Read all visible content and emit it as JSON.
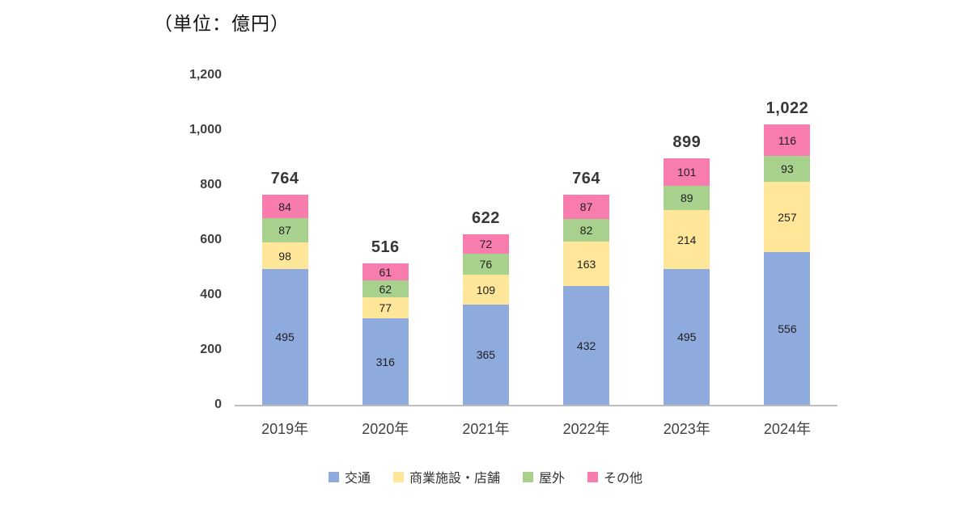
{
  "unit_label": "（単位：億円）",
  "chart_data": {
    "type": "bar",
    "stacked": true,
    "unit": "（単位：億円）",
    "categories": [
      "2019年",
      "2020年",
      "2021年",
      "2022年",
      "2023年",
      "2024年"
    ],
    "series": [
      {
        "name": "交通",
        "color": "#8FAADC",
        "values": [
          495,
          316,
          365,
          432,
          495,
          556
        ]
      },
      {
        "name": "商業施設・店舗",
        "color": "#FFE699",
        "values": [
          98,
          77,
          109,
          163,
          214,
          257
        ]
      },
      {
        "name": "屋外",
        "color": "#A9D18E",
        "values": [
          87,
          62,
          76,
          82,
          89,
          93
        ]
      },
      {
        "name": "その他",
        "color": "#F87CAE",
        "values": [
          84,
          61,
          72,
          87,
          101,
          116
        ]
      }
    ],
    "totals": [
      "764",
      "516",
      "622",
      "764",
      "899",
      "1,022"
    ],
    "ylim": [
      0,
      1200
    ],
    "yticks": [
      {
        "value": 0,
        "label": "0"
      },
      {
        "value": 200,
        "label": "200"
      },
      {
        "value": 400,
        "label": "400"
      },
      {
        "value": 600,
        "label": "600"
      },
      {
        "value": 800,
        "label": "800"
      },
      {
        "value": 1000,
        "label": "1,000"
      },
      {
        "value": 1200,
        "label": "1,200"
      }
    ],
    "grid": false,
    "legend_position": "bottom"
  }
}
